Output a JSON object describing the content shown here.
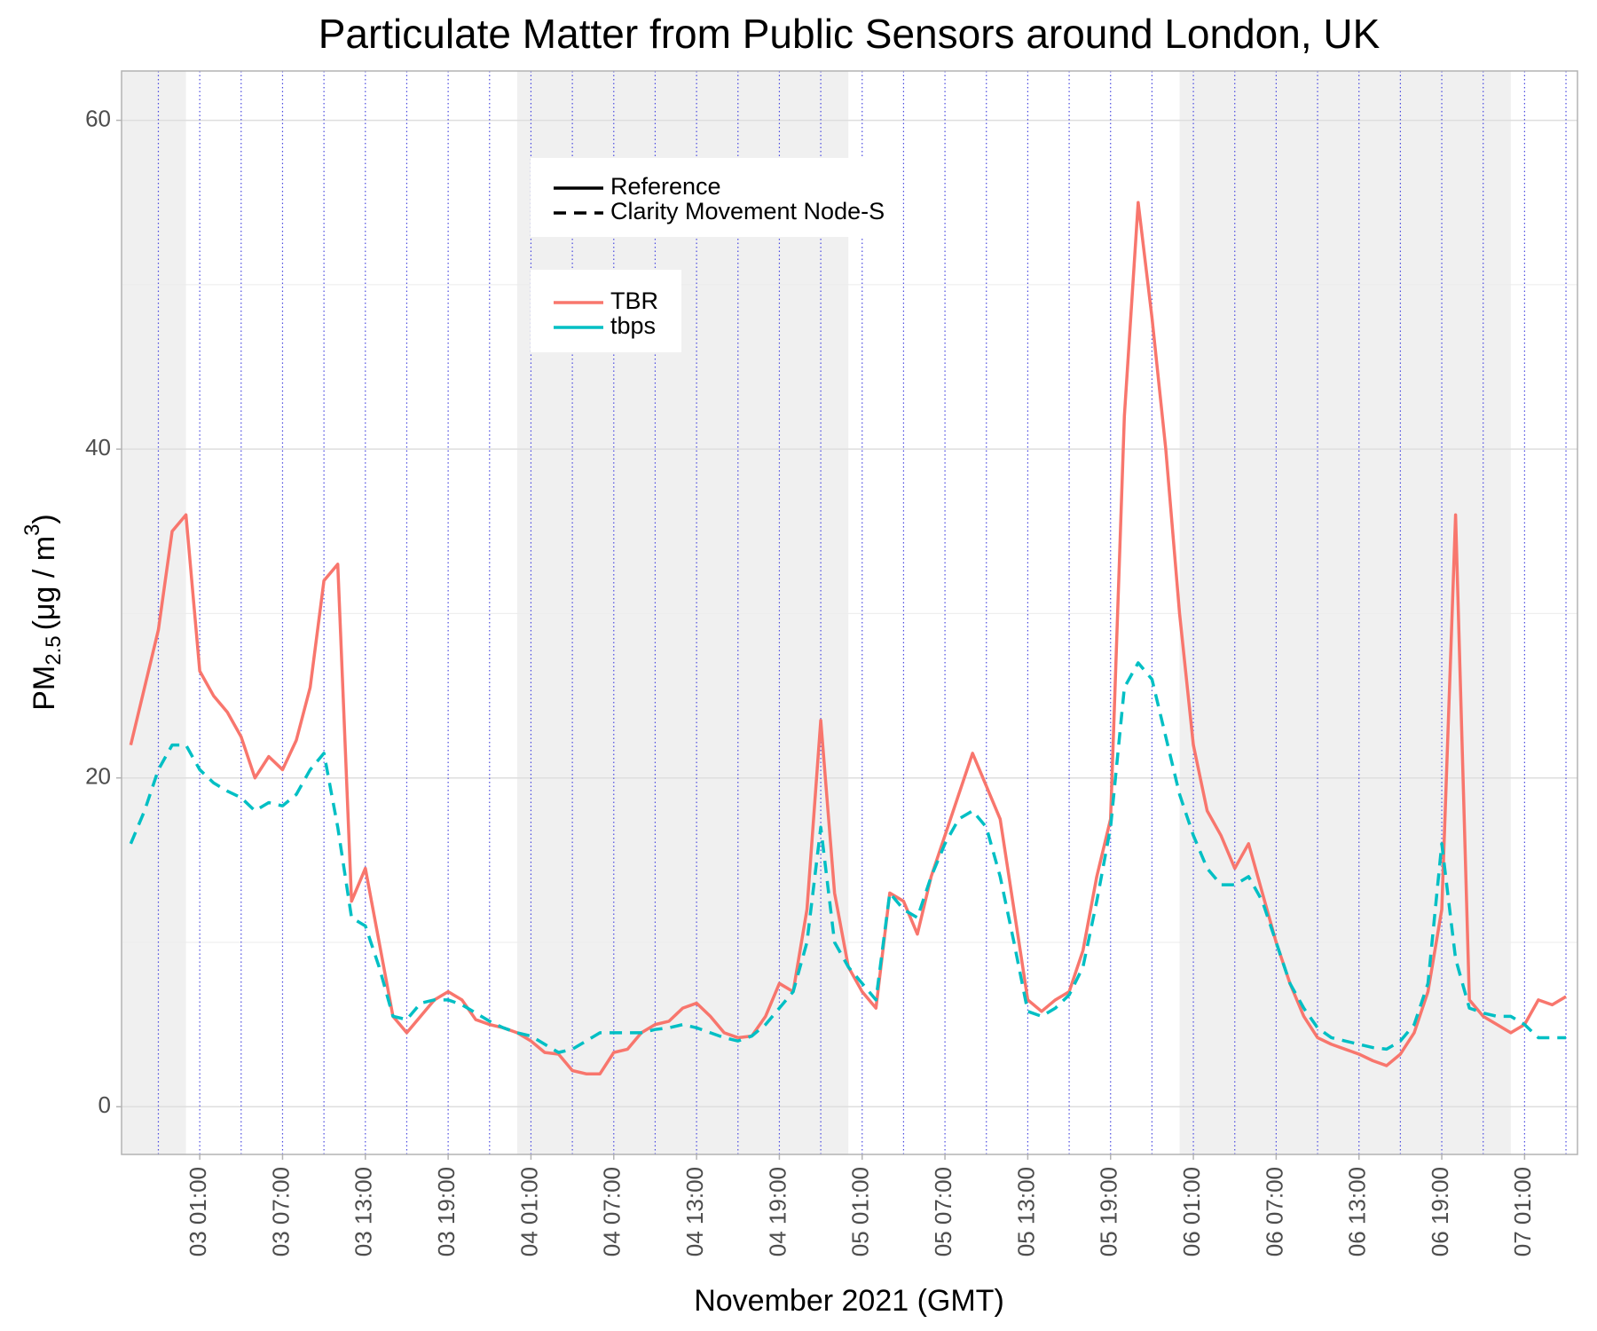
{
  "chart_data": {
    "type": "line",
    "title": "Particulate Matter from Public Sensors around London, UK",
    "x_label": "November 2021 (GMT)",
    "y_label": {
      "main": "PM",
      "sub": "2.5",
      "unit": "(μg / m",
      "sup": "3",
      "close": ")"
    },
    "x": [
      "02 20:00",
      "02 21:00",
      "02 22:00",
      "02 23:00",
      "03 00:00",
      "03 01:00",
      "03 02:00",
      "03 03:00",
      "03 04:00",
      "03 05:00",
      "03 06:00",
      "03 07:00",
      "03 08:00",
      "03 09:00",
      "03 10:00",
      "03 11:00",
      "03 12:00",
      "03 13:00",
      "03 14:00",
      "03 15:00",
      "03 16:00",
      "03 17:00",
      "03 18:00",
      "03 19:00",
      "03 20:00",
      "03 21:00",
      "03 22:00",
      "03 23:00",
      "04 00:00",
      "04 01:00",
      "04 02:00",
      "04 03:00",
      "04 04:00",
      "04 05:00",
      "04 06:00",
      "04 07:00",
      "04 08:00",
      "04 09:00",
      "04 10:00",
      "04 11:00",
      "04 12:00",
      "04 13:00",
      "04 14:00",
      "04 15:00",
      "04 16:00",
      "04 17:00",
      "04 18:00",
      "04 19:00",
      "04 20:00",
      "04 21:00",
      "04 22:00",
      "04 23:00",
      "05 00:00",
      "05 01:00",
      "05 02:00",
      "05 03:00",
      "05 04:00",
      "05 05:00",
      "05 06:00",
      "05 07:00",
      "05 08:00",
      "05 09:00",
      "05 10:00",
      "05 11:00",
      "05 12:00",
      "05 13:00",
      "05 14:00",
      "05 15:00",
      "05 16:00",
      "05 17:00",
      "05 18:00",
      "05 19:00",
      "05 20:00",
      "05 21:00",
      "05 22:00",
      "05 23:00",
      "06 00:00",
      "06 01:00",
      "06 02:00",
      "06 03:00",
      "06 04:00",
      "06 05:00",
      "06 06:00",
      "06 07:00",
      "06 08:00",
      "06 09:00",
      "06 10:00",
      "06 11:00",
      "06 12:00",
      "06 13:00",
      "06 14:00",
      "06 15:00",
      "06 16:00",
      "06 17:00",
      "06 18:00",
      "06 19:00",
      "06 20:00",
      "06 21:00",
      "06 22:00",
      "06 23:00",
      "07 00:00",
      "07 01:00",
      "07 02:00",
      "07 03:00",
      "07 04:00"
    ],
    "series": [
      {
        "name": "TBR",
        "color": "#F8766D",
        "dash": "solid",
        "values": [
          22,
          25.5,
          29,
          35,
          36,
          26.5,
          25,
          24,
          22.5,
          20,
          21.3,
          20.5,
          22.3,
          25.5,
          32,
          33,
          12.5,
          14.5,
          10,
          5.5,
          4.5,
          5.5,
          6.5,
          7,
          6.5,
          5.3,
          5,
          4.8,
          4.5,
          4,
          3.3,
          3.2,
          2.2,
          2,
          2,
          3.3,
          3.5,
          4.5,
          5,
          5.2,
          6,
          6.3,
          5.5,
          4.5,
          4.2,
          4.3,
          5.5,
          7.5,
          7,
          12,
          23.5,
          13,
          8.5,
          7,
          6,
          13,
          12.5,
          10.5,
          14,
          16.5,
          19,
          21.5,
          19.5,
          17.5,
          12,
          6.5,
          5.8,
          6.5,
          7,
          9.5,
          14,
          17.5,
          42,
          55,
          48,
          40,
          30,
          22,
          18,
          16.5,
          14.5,
          16,
          13,
          10,
          7.5,
          5.5,
          4.2,
          3.8,
          3.5,
          3.2,
          2.8,
          2.5,
          3.2,
          4.5,
          7,
          12,
          36,
          6.5,
          5.5,
          5,
          4.5,
          5,
          6.5,
          6.2,
          6.7
        ]
      },
      {
        "name": "tbps",
        "color": "#00BFC4",
        "dash": "dashed",
        "values": [
          16,
          18,
          20.5,
          22,
          22,
          20.5,
          19.7,
          19.2,
          18.8,
          18,
          18.5,
          18.3,
          19,
          20.5,
          21.5,
          17,
          11.5,
          11,
          8.5,
          5.5,
          5.3,
          6.3,
          6.5,
          6.5,
          6.2,
          5.7,
          5.2,
          4.8,
          4.5,
          4.3,
          3.8,
          3.3,
          3.5,
          4,
          4.5,
          4.5,
          4.5,
          4.5,
          4.7,
          4.8,
          5,
          4.8,
          4.5,
          4.2,
          4,
          4.3,
          5,
          6,
          7,
          10,
          17,
          10,
          8.5,
          7.5,
          6.5,
          13,
          12,
          11.5,
          14,
          16,
          17.5,
          18,
          17,
          14,
          10,
          5.8,
          5.5,
          6,
          6.8,
          8.5,
          12.5,
          17,
          25.5,
          27,
          26,
          22.5,
          19,
          16.5,
          14.5,
          13.5,
          13.5,
          14,
          12.5,
          10,
          7.5,
          6,
          4.8,
          4.2,
          4,
          3.8,
          3.6,
          3.5,
          4,
          5,
          7.5,
          16,
          9,
          6,
          5.7,
          5.5,
          5.5,
          5,
          4.2,
          4.2,
          4.2
        ]
      }
    ],
    "linetypes": [
      {
        "name": "Reference",
        "dash": "solid"
      },
      {
        "name": "Clarity Movement Node-S",
        "dash": "dashed"
      }
    ],
    "xlim": [
      "02 19:20",
      "07 04:50"
    ],
    "xticks": [
      "03 01:00",
      "03 07:00",
      "03 13:00",
      "03 19:00",
      "04 01:00",
      "04 07:00",
      "04 13:00",
      "04 19:00",
      "05 01:00",
      "05 07:00",
      "05 13:00",
      "05 19:00",
      "06 01:00",
      "06 07:00",
      "06 13:00",
      "06 19:00",
      "07 01:00"
    ],
    "ylim": [
      -2.9,
      63
    ],
    "yticks": [
      0,
      20,
      40,
      60
    ],
    "grid": true,
    "minor_vgrid_color": "#4a4ae0",
    "shaded": [
      [
        "02 00:00",
        "03 00:00"
      ],
      [
        "04 00:00",
        "05 00:00"
      ],
      [
        "06 00:00",
        "07 00:00"
      ]
    ],
    "shade_color": "#f0f0f0"
  }
}
